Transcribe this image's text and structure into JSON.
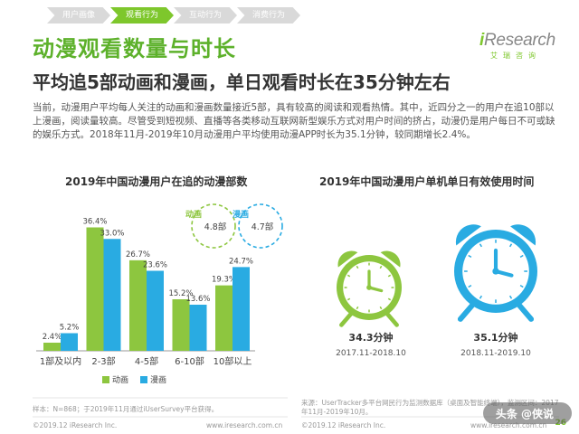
{
  "nav": {
    "tabs": [
      {
        "label": "用户画像",
        "active": false
      },
      {
        "label": "观看行为",
        "active": true
      },
      {
        "label": "互动行为",
        "active": false
      },
      {
        "label": "消费行为",
        "active": false
      }
    ]
  },
  "logo": {
    "text_prefix": "i",
    "text_main": "Research",
    "sub": "艾瑞咨询"
  },
  "header": {
    "title": "动漫观看数量与时长",
    "subtitle": "平均追5部动画和漫画，单日观看时长在35分钟左右",
    "body": "当前，动漫用户平均每人关注的动画和漫画数量接近5部，具有较高的阅读和观看热情。其中，近四分之一的用户在追10部以上漫画，阅读量较高。尽管受到短视频、直播等各类移动互联网新型娱乐方式对用户时间的挤占，动漫仍是用户每日不可或缺的娱乐方式。2018年11月-2019年10月动漫用户平均使用动漫APP时长为35.1分钟，较同期增长2.4%。"
  },
  "colors": {
    "anime": "#8dc63f",
    "manga": "#29abe2",
    "accent": "#5db12b"
  },
  "chart_data": [
    {
      "type": "bar",
      "title": "2019年中国动漫用户在追的动漫部数",
      "categories": [
        "1部及以内",
        "2-3部",
        "4-5部",
        "6-10部",
        "10部以上"
      ],
      "series": [
        {
          "name": "动画",
          "values": [
            2.4,
            36.4,
            26.7,
            15.2,
            19.3
          ],
          "labels": [
            "2.4%",
            "36.4%",
            "26.7%",
            "15.2%",
            "19.3%"
          ]
        },
        {
          "name": "漫画",
          "values": [
            5.2,
            33.0,
            23.6,
            13.6,
            24.7
          ],
          "labels": [
            "5.2%",
            "33.0%",
            "23.6%",
            "13.6%",
            "24.7%"
          ]
        }
      ],
      "ylim": [
        0,
        40
      ],
      "legend": "bottom",
      "averages": [
        {
          "label": "动画",
          "value": "4.8部"
        },
        {
          "label": "漫画",
          "value": "4.7部"
        }
      ]
    },
    {
      "type": "bar",
      "title": "2019年中国动漫用户单机单日有效使用时间",
      "categories": [
        "2017.11-2018.10",
        "2018.11-2019.10"
      ],
      "values": [
        34.3,
        35.1
      ],
      "labels": [
        "34.3分钟",
        "35.1分钟"
      ]
    }
  ],
  "notes": {
    "left": "样本：N=868；于2019年11月通过iUserSurvey平台获得。",
    "right": "来源：UserTracker多平台网民行为监测数据库（桌面及智能终端），监测区间：2017年11月-2019年10月。"
  },
  "footer": {
    "left_copy": "©2019.12 iResearch Inc.",
    "left_url": "www.iresearch.com.cn",
    "right_copy": "©2019.12 iResearch Inc.",
    "right_url": "www.iresearch.com.cn",
    "page": "26",
    "watermark": "头条 @侠说"
  }
}
